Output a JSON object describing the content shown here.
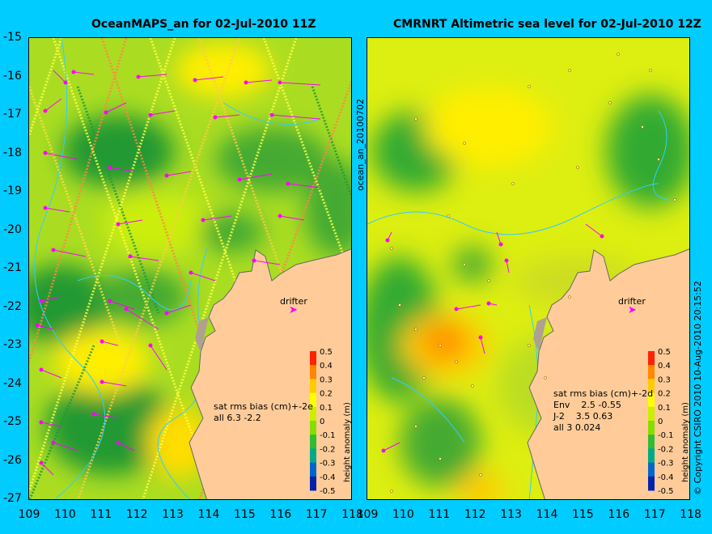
{
  "left_panel": {
    "title": "OceanMAPS_an for 02-Jul-2010 11Z",
    "stats_header": "sat rms bias (cm)+-2e",
    "stats_lines": [
      "all 6.3 -2.2"
    ],
    "drifter_label": "drifter"
  },
  "right_panel": {
    "title": "CMRNRT Altimetric sea level  for 02-Jul-2010 12Z",
    "stats_header": "sat rms bias (cm)+-2d",
    "stats_lines": [
      "Env    2.5 -0.55",
      "J-2    3.5 0.63",
      "all 3 0.024"
    ],
    "drifter_label": "drifter"
  },
  "vertical_label_middle": "ocean_an_20100702",
  "vertical_label_right": "© Copyright CSIRO 2010   10-Aug-2010 20:15:52",
  "colorbar": {
    "title": "height anomaly (m)",
    "ticks": [
      "0.5",
      "0.4",
      "0.3",
      "0.2",
      "0.1",
      "0",
      "-0.1",
      "-0.2",
      "-0.3",
      "-0.4",
      "-0.5"
    ]
  },
  "y_ticks": [
    "-15",
    "-16",
    "-17",
    "-18",
    "-19",
    "-20",
    "-21",
    "-22",
    "-23",
    "-24",
    "-25",
    "-26",
    "-27"
  ],
  "x_ticks": [
    "109",
    "110",
    "111",
    "112",
    "113",
    "114",
    "115",
    "116",
    "117",
    "118"
  ],
  "colors": {
    "background": "#00ccff",
    "land": "#ffcc99",
    "coast_shadow": "#b0a090",
    "anom_high": "#ff8800",
    "anom_mid": "#ffff00",
    "anom_zero": "#88dd00",
    "anom_low": "#229933",
    "contour": "#33ccff",
    "arrows": "#ff00ff"
  }
}
